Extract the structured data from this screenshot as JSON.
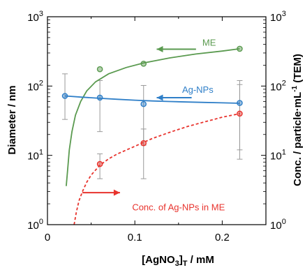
{
  "chart_data": {
    "type": "scatter",
    "xlabel_main": "[AgNO",
    "xlabel_sub1": "3",
    "xlabel_mid": "]",
    "xlabel_sub2": "T",
    "xlabel_tail": " / mM",
    "ylabel_left": "Diameter / nm",
    "ylabel_right_pre": "Conc. / particle·mL",
    "ylabel_right_sup": "-1",
    "ylabel_right_post": " (TEM)",
    "xlim": [
      0,
      0.25
    ],
    "ylim": [
      1,
      1000
    ],
    "y_scale": "log",
    "x_ticks": [
      {
        "value": 0,
        "label": "0"
      },
      {
        "value": 0.1,
        "label": "0.1"
      },
      {
        "value": 0.2,
        "label": "0.2"
      }
    ],
    "y_ticks": [
      {
        "value": 1,
        "base": "10",
        "exp": "0"
      },
      {
        "value": 10,
        "base": "10",
        "exp": "1"
      },
      {
        "value": 100,
        "base": "10",
        "exp": "2"
      },
      {
        "value": 1000,
        "base": "10",
        "exp": "3"
      }
    ],
    "series": [
      {
        "name": "ME",
        "color": "#5a9a4f",
        "axis": "left",
        "points": [
          {
            "x": 0.06,
            "y": 175
          },
          {
            "x": 0.11,
            "y": 210
          },
          {
            "x": 0.22,
            "y": 345
          }
        ],
        "fit": [
          [
            0.0215,
            3.6
          ],
          [
            0.023,
            6
          ],
          [
            0.025,
            12
          ],
          [
            0.028,
            22
          ],
          [
            0.032,
            38
          ],
          [
            0.038,
            60
          ],
          [
            0.045,
            85
          ],
          [
            0.055,
            115
          ],
          [
            0.07,
            150
          ],
          [
            0.09,
            185
          ],
          [
            0.11,
            215
          ],
          [
            0.14,
            255
          ],
          [
            0.17,
            290
          ],
          [
            0.2,
            320
          ],
          [
            0.22,
            345
          ]
        ],
        "fit_style": "solid",
        "arrow_dir": "left",
        "arrow_x": [
          0.125,
          0.17
        ],
        "arrow_y": 340,
        "label_x": 0.185,
        "label_y": 380
      },
      {
        "name": "Ag-NPs",
        "color": "#2f7fc8",
        "axis": "left",
        "points": [
          {
            "x": 0.02,
            "y": 72
          },
          {
            "x": 0.06,
            "y": 68
          },
          {
            "x": 0.11,
            "y": 55
          },
          {
            "x": 0.22,
            "y": 57
          }
        ],
        "errors": [
          {
            "x": 0.02,
            "lo": 33,
            "hi": 150
          },
          {
            "x": 0.06,
            "lo": 22,
            "hi": 120
          },
          {
            "x": 0.11,
            "lo": 14,
            "hi": 102
          },
          {
            "x": 0.22,
            "lo": 12,
            "hi": 105
          }
        ],
        "fit": [
          [
            0.02,
            72
          ],
          [
            0.04,
            69
          ],
          [
            0.06,
            66.5
          ],
          [
            0.08,
            64.5
          ],
          [
            0.1,
            62.5
          ],
          [
            0.12,
            61
          ],
          [
            0.14,
            59.8
          ],
          [
            0.16,
            58.8
          ],
          [
            0.18,
            58
          ],
          [
            0.2,
            57.3
          ],
          [
            0.22,
            56.5
          ]
        ],
        "fit_style": "solid",
        "arrow_dir": "left",
        "arrow_x": [
          0.125,
          0.165
        ],
        "arrow_y": 68,
        "label_x": 0.172,
        "label_y": 80
      },
      {
        "name": "Conc. of Ag-NPs in ME",
        "color": "#e8332d",
        "axis": "right",
        "points": [
          {
            "x": 0.06,
            "y": 7.5
          },
          {
            "x": 0.11,
            "y": 15
          },
          {
            "x": 0.22,
            "y": 40
          }
        ],
        "errors": [
          {
            "x": 0.06,
            "lo": 4.6,
            "hi": 10.5
          },
          {
            "x": 0.11,
            "lo": 4.6,
            "hi": 24
          },
          {
            "x": 0.22,
            "lo": 8.8,
            "hi": 120
          }
        ],
        "fit": [
          [
            0.0305,
            1
          ],
          [
            0.033,
            1.5
          ],
          [
            0.036,
            2.2
          ],
          [
            0.04,
            3
          ],
          [
            0.045,
            4.1
          ],
          [
            0.05,
            5.2
          ],
          [
            0.06,
            7.2
          ],
          [
            0.07,
            8.9
          ],
          [
            0.08,
            10.5
          ],
          [
            0.1,
            13.5
          ],
          [
            0.12,
            17.5
          ],
          [
            0.14,
            21.5
          ],
          [
            0.16,
            26
          ],
          [
            0.18,
            30.5
          ],
          [
            0.2,
            35.5
          ],
          [
            0.22,
            40
          ]
        ],
        "fit_style": "dashed",
        "arrow_dir": "right",
        "arrow_x": [
          0.04,
          0.083
        ],
        "arrow_y": 2.9,
        "label_x": 0.15,
        "label_y": 1.6
      }
    ]
  }
}
